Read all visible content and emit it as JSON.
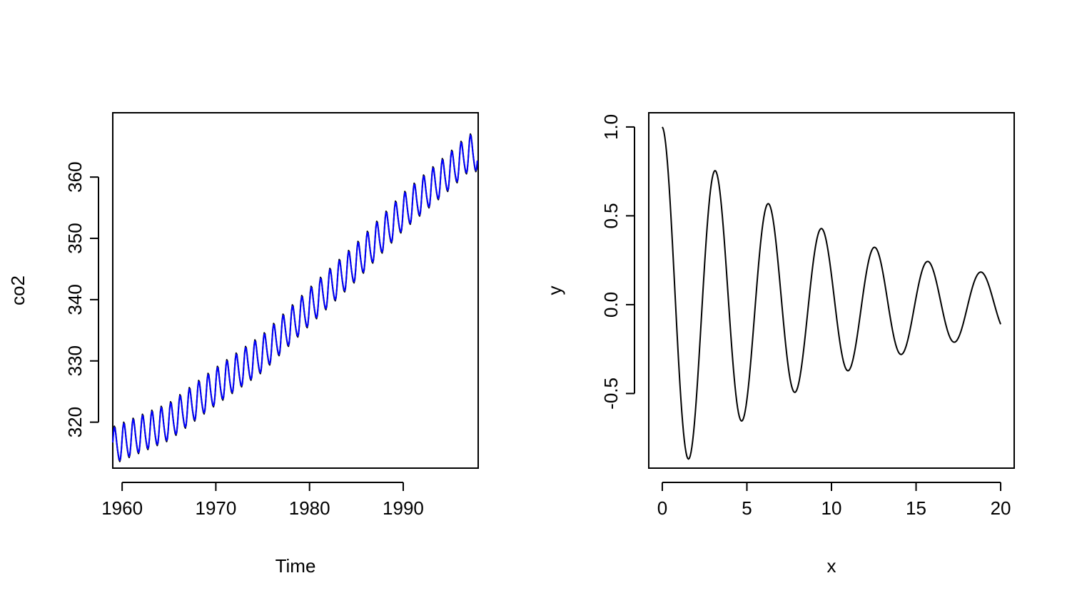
{
  "chart_data": [
    {
      "type": "line",
      "title": "",
      "xlabel": "Time",
      "ylabel": "co2",
      "xlim": [
        1959,
        1998
      ],
      "ylim": [
        312.5,
        370.5
      ],
      "xticks": [
        1960,
        1970,
        1980,
        1990
      ],
      "xtick_labels": [
        "1960",
        "1970",
        "1980",
        "1990"
      ],
      "yticks": [
        320,
        330,
        340,
        350,
        360
      ],
      "ytick_labels": [
        "320",
        "330",
        "340",
        "350",
        "360"
      ],
      "grid": false,
      "legend": "none",
      "monthly_series_range": {
        "x": [
          1959.0,
          1997.92
        ],
        "y_min": 313.2,
        "y_max": 367.0
      },
      "series": [
        {
          "color": "#000000",
          "annual_mean": {
            "x": [
              1959,
              1965,
              1970,
              1975,
              1980,
              1985,
              1990,
              1995,
              1997
            ],
            "y": [
              316.0,
              319.9,
              325.7,
              331.1,
              338.7,
              346.0,
              354.2,
              360.9,
              363.8
            ]
          },
          "seasonal_amplitude": 3.0
        },
        {
          "color": "#0000ff",
          "annual_mean": {
            "x": [
              1959,
              1965,
              1970,
              1975,
              1980,
              1985,
              1990,
              1995,
              1997
            ],
            "y": [
              316.0,
              319.9,
              325.7,
              331.1,
              338.7,
              346.0,
              354.2,
              360.9,
              363.8
            ]
          },
          "seasonal_amplitude": 2.8
        }
      ]
    },
    {
      "type": "line",
      "title": "",
      "xlabel": "x",
      "ylabel": "y",
      "xlim": [
        -0.8,
        20.8
      ],
      "ylim": [
        -0.92,
        1.08
      ],
      "xticks": [
        0,
        5,
        10,
        15,
        20
      ],
      "xtick_labels": [
        "0",
        "5",
        "10",
        "15",
        "20"
      ],
      "yticks": [
        -0.5,
        0.0,
        0.5,
        1.0
      ],
      "ytick_labels": [
        "-0.5",
        "0.0",
        "0.5",
        "1.0"
      ],
      "grid": false,
      "legend": "none",
      "function": "y = exp(-0.09*x) * cos(2*x)",
      "x_range": [
        0,
        20
      ],
      "points": 400,
      "series": [
        {
          "color": "#000000"
        }
      ]
    }
  ]
}
